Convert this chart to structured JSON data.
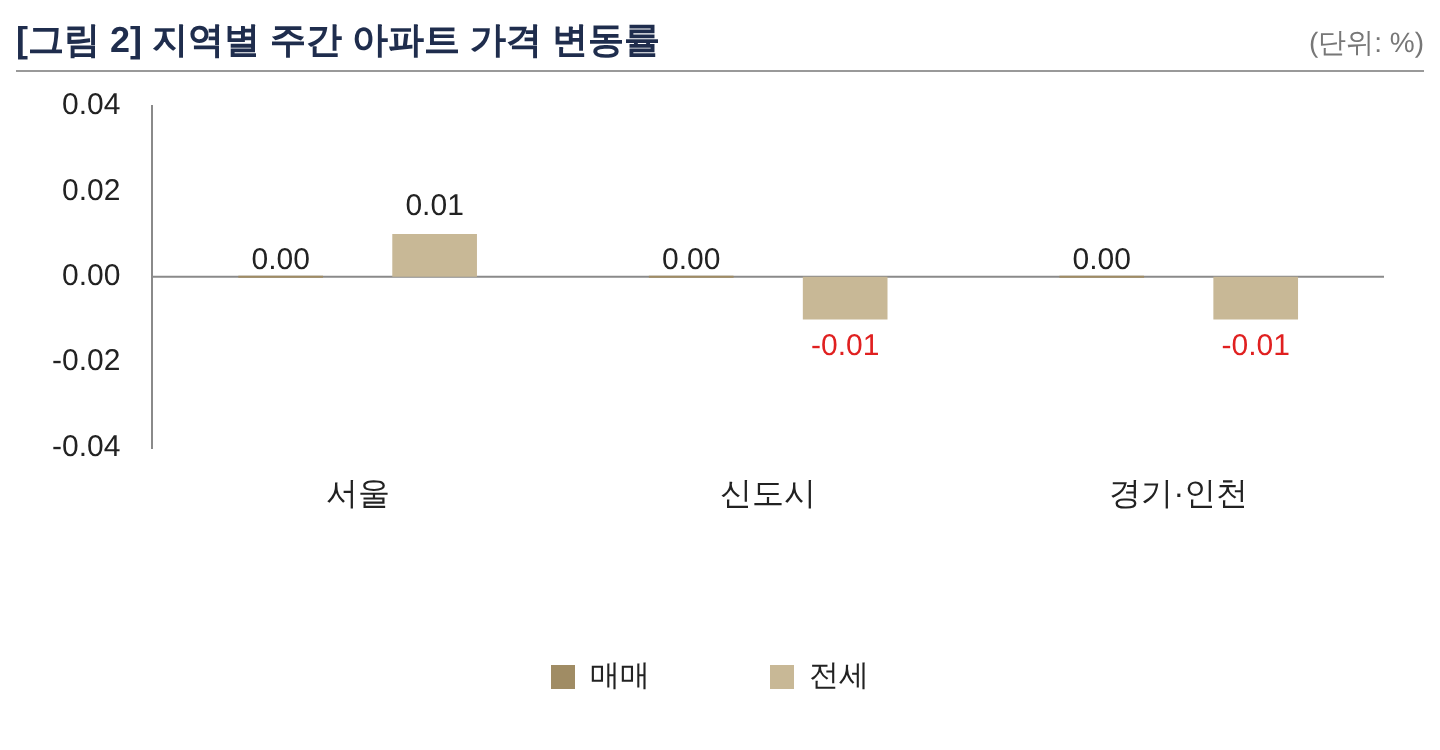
{
  "chart_data": {
    "type": "bar",
    "title": "[그림 2] 지역별 주간 아파트 가격 변동률",
    "annotations": [
      "(단위: %)"
    ],
    "categories": [
      "서울",
      "신도시",
      "경기·인천"
    ],
    "series": [
      {
        "name": "매매",
        "color": "#a08c64",
        "values": [
          0,
          0,
          0
        ],
        "value_labels": [
          "0.00",
          "0.00",
          "0.00"
        ]
      },
      {
        "name": "전세",
        "color": "#c8b896",
        "values": [
          0.01,
          -0.01,
          -0.01
        ],
        "value_labels": [
          "0.01",
          "-0.01",
          "-0.01"
        ]
      }
    ],
    "ylim": [
      -0.04,
      0.04
    ],
    "yticks": [
      -0.04,
      -0.02,
      {
        "value": 0,
        "label": "0.00"
      },
      0.02,
      0.04
    ],
    "ref_lines": [
      {
        "axis": "y",
        "value": 0,
        "color": "#8a8a8a"
      }
    ],
    "grid": false,
    "legend": "bottom"
  }
}
